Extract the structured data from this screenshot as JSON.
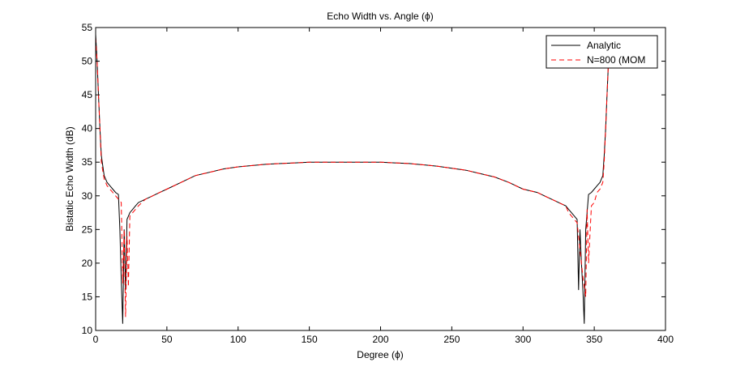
{
  "chart_data": {
    "type": "line",
    "title": "Echo Width vs. Angle (ϕ)",
    "xlabel": "Degree (ϕ)",
    "ylabel": "Bistatic Echo Width (dB)",
    "xlim": [
      0,
      400
    ],
    "ylim": [
      10,
      55
    ],
    "xticks": [
      0,
      50,
      100,
      150,
      200,
      250,
      300,
      350,
      400
    ],
    "yticks": [
      10,
      15,
      20,
      25,
      30,
      35,
      40,
      45,
      50,
      55
    ],
    "grid": false,
    "legend_position": "top-right",
    "series": [
      {
        "name": "Analytic",
        "color": "#000000",
        "dash": "solid",
        "x": [
          0,
          1,
          2,
          3,
          4,
          6,
          8,
          10,
          12,
          14,
          16,
          17,
          18,
          19,
          20,
          21,
          22,
          24,
          26,
          28,
          30,
          35,
          40,
          45,
          50,
          60,
          70,
          80,
          90,
          100,
          110,
          120,
          130,
          140,
          150,
          160,
          170,
          180,
          190,
          200,
          210,
          220,
          230,
          240,
          250,
          260,
          270,
          280,
          290,
          300,
          310,
          315,
          320,
          325,
          330,
          332,
          334,
          336,
          338,
          339,
          340,
          341,
          342,
          343,
          344,
          346,
          348,
          350,
          352,
          354,
          356,
          357,
          358,
          359,
          360
        ],
        "y": [
          54.0,
          50.0,
          45.0,
          40.0,
          36.0,
          33.0,
          32.0,
          31.5,
          31.0,
          30.5,
          30.2,
          25.0,
          17.5,
          11.0,
          25.0,
          16.0,
          26.5,
          27.5,
          28.0,
          28.5,
          29.0,
          29.5,
          30.0,
          30.5,
          31.0,
          32.0,
          33.0,
          33.5,
          34.0,
          34.3,
          34.5,
          34.7,
          34.8,
          34.9,
          35.0,
          35.0,
          35.0,
          35.0,
          35.0,
          35.0,
          34.9,
          34.8,
          34.6,
          34.4,
          34.1,
          33.8,
          33.3,
          32.8,
          32.0,
          31.0,
          30.5,
          30.0,
          29.5,
          29.0,
          28.5,
          28.0,
          27.5,
          27.0,
          26.5,
          16.0,
          25.0,
          20.0,
          16.0,
          11.0,
          25.0,
          30.2,
          30.5,
          31.0,
          31.5,
          32.0,
          33.0,
          36.0,
          40.0,
          45.0,
          50.0
        ]
      },
      {
        "name": "N=800 (MOM",
        "color": "#ff0000",
        "dash": "dashed",
        "x": [
          0,
          1,
          2,
          3,
          4,
          6,
          8,
          10,
          12,
          14,
          16,
          18,
          19,
          20,
          21,
          22,
          23,
          24,
          26,
          28,
          30,
          35,
          40,
          45,
          50,
          60,
          70,
          80,
          90,
          100,
          110,
          120,
          130,
          140,
          150,
          160,
          170,
          180,
          190,
          200,
          210,
          220,
          230,
          240,
          250,
          260,
          270,
          280,
          290,
          300,
          310,
          315,
          320,
          325,
          330,
          332,
          334,
          336,
          338,
          340,
          342,
          344,
          345,
          346,
          348,
          350,
          352,
          354,
          356,
          357,
          358,
          359,
          360
        ],
        "y": [
          53.5,
          50.0,
          45.0,
          40.0,
          35.0,
          32.5,
          31.5,
          31.0,
          30.5,
          30.0,
          29.5,
          29.0,
          17.0,
          25.0,
          12.0,
          24.0,
          16.5,
          27.0,
          27.5,
          28.0,
          28.5,
          29.5,
          30.0,
          30.5,
          31.0,
          32.0,
          33.0,
          33.5,
          34.0,
          34.3,
          34.5,
          34.7,
          34.8,
          34.9,
          35.0,
          35.0,
          35.0,
          35.0,
          35.0,
          35.0,
          34.9,
          34.8,
          34.6,
          34.4,
          34.1,
          33.8,
          33.3,
          32.8,
          32.0,
          31.0,
          30.5,
          30.0,
          29.5,
          29.0,
          28.5,
          27.5,
          27.0,
          26.5,
          26.0,
          22.0,
          18.0,
          15.0,
          28.0,
          20.0,
          28.5,
          29.0,
          30.5,
          31.0,
          32.0,
          35.0,
          40.0,
          45.0,
          50.0
        ]
      }
    ]
  }
}
